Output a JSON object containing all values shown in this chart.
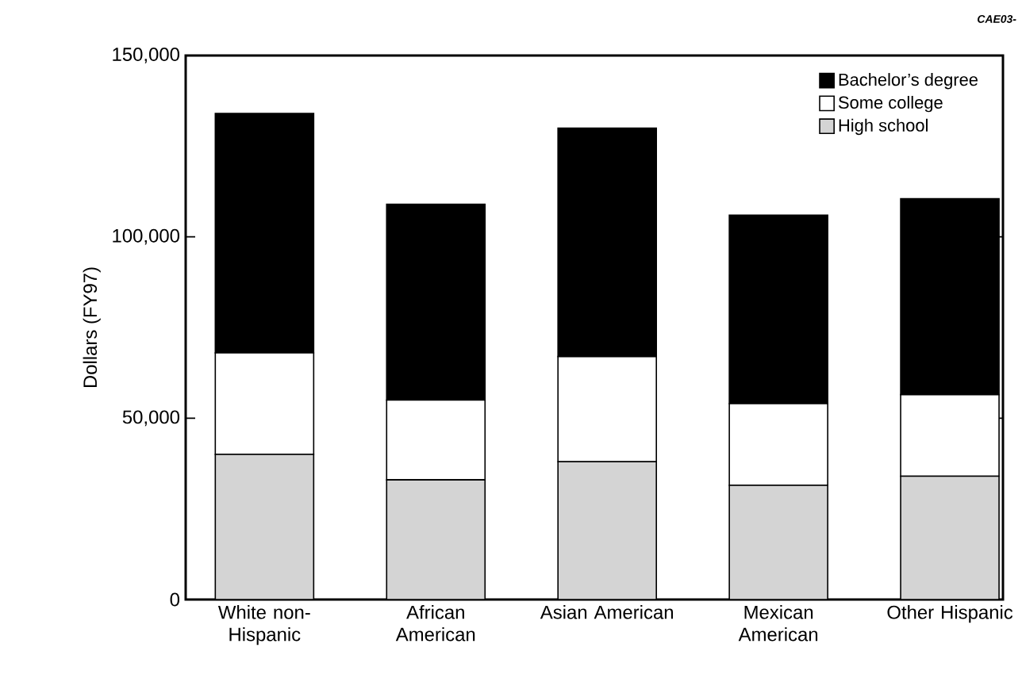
{
  "chart_data": {
    "type": "bar",
    "stacked": true,
    "ylabel": "Dollars (FY97)",
    "annotations": [
      "CAE03-"
    ],
    "categories": [
      "White non-Hispanic",
      "African American",
      "Asian American",
      "Mexican American",
      "Other Hispanic"
    ],
    "series": [
      {
        "name": "High school",
        "color": "#d4d4d4",
        "values": [
          40000,
          33000,
          38000,
          31500,
          34000
        ]
      },
      {
        "name": "Some college",
        "color": "#ffffff",
        "values": [
          28000,
          22000,
          29000,
          22500,
          22500
        ]
      },
      {
        "name": "Bachelor’s degree",
        "color": "#000000",
        "values": [
          66000,
          54000,
          63000,
          52000,
          54000
        ]
      }
    ],
    "ylim": [
      0,
      150000
    ],
    "yticks": [
      0,
      {
        "value": 50000,
        "label": "50,000"
      },
      {
        "value": 100000,
        "label": "100,000"
      },
      {
        "value": 150000,
        "label": "150,000"
      }
    ],
    "grid": false,
    "legend": "top right"
  }
}
